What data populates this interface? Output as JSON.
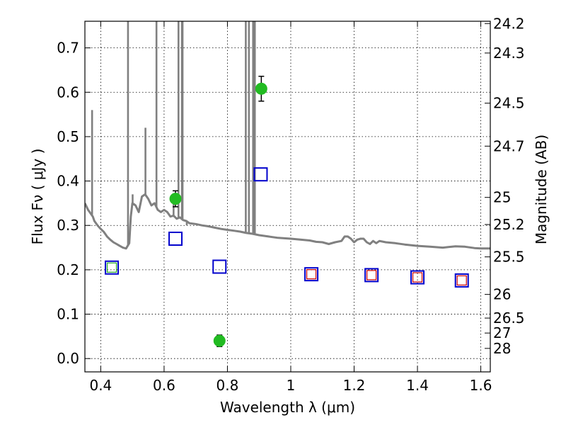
{
  "chart_data": {
    "type": "scatter",
    "title": "",
    "xlabel": "Wavelength  λ (μm)",
    "ylabel": "Flux  Fν  ( μJy )",
    "ylabel_right": "Magnitude (AB)",
    "xlim": [
      0.35,
      1.63
    ],
    "ylim": [
      -0.03,
      0.76
    ],
    "x_ticks": [
      0.4,
      0.6,
      0.8,
      1.0,
      1.2,
      1.4,
      1.6
    ],
    "x_tick_labels": [
      "0.4",
      "0.6",
      "0.8",
      "1",
      "1.2",
      "1.4",
      "1.6"
    ],
    "y_ticks": [
      0.0,
      0.1,
      0.2,
      0.3,
      0.4,
      0.5,
      0.6,
      0.7
    ],
    "y_tick_labels": [
      "0.0",
      "0.1",
      "0.2",
      "0.3",
      "0.4",
      "0.5",
      "0.6",
      "0.7"
    ],
    "right_ticks": [
      {
        "flux": 0.7548,
        "label": "24.2"
      },
      {
        "flux": 0.6884,
        "label": "24.3"
      },
      {
        "flux": 0.5754,
        "label": "24.5"
      },
      {
        "flux": 0.4786,
        "label": "24.7"
      },
      {
        "flux": 0.3631,
        "label": "25"
      },
      {
        "flux": 0.302,
        "label": "25.2"
      },
      {
        "flux": 0.2291,
        "label": "25.5"
      },
      {
        "flux": 0.1445,
        "label": "26"
      },
      {
        "flux": 0.0912,
        "label": "26.5"
      },
      {
        "flux": 0.0575,
        "label": "27"
      },
      {
        "flux": 0.0229,
        "label": "28"
      }
    ],
    "grid": true,
    "series": [
      {
        "kind": "line",
        "color": "#808080",
        "points": [
          [
            0.35,
            0.35
          ],
          [
            0.36,
            0.335
          ],
          [
            0.37,
            0.325
          ],
          [
            0.375,
            0.32
          ],
          [
            0.38,
            0.31
          ],
          [
            0.39,
            0.3
          ],
          [
            0.4,
            0.292
          ],
          [
            0.41,
            0.285
          ],
          [
            0.42,
            0.275
          ],
          [
            0.43,
            0.268
          ],
          [
            0.44,
            0.262
          ],
          [
            0.45,
            0.258
          ],
          [
            0.46,
            0.254
          ],
          [
            0.47,
            0.25
          ],
          [
            0.48,
            0.248
          ],
          [
            0.49,
            0.26
          ],
          [
            0.495,
            0.32
          ],
          [
            0.5,
            0.35
          ],
          [
            0.51,
            0.345
          ],
          [
            0.52,
            0.33
          ],
          [
            0.53,
            0.365
          ],
          [
            0.54,
            0.37
          ],
          [
            0.55,
            0.36
          ],
          [
            0.56,
            0.345
          ],
          [
            0.57,
            0.35
          ],
          [
            0.58,
            0.335
          ],
          [
            0.59,
            0.33
          ],
          [
            0.6,
            0.335
          ],
          [
            0.61,
            0.33
          ],
          [
            0.62,
            0.32
          ],
          [
            0.63,
            0.322
          ],
          [
            0.64,
            0.315
          ],
          [
            0.65,
            0.318
          ],
          [
            0.66,
            0.312
          ],
          [
            0.67,
            0.31
          ],
          [
            0.68,
            0.305
          ],
          [
            0.7,
            0.303
          ],
          [
            0.72,
            0.3
          ],
          [
            0.74,
            0.298
          ],
          [
            0.76,
            0.295
          ],
          [
            0.78,
            0.292
          ],
          [
            0.8,
            0.29
          ],
          [
            0.82,
            0.288
          ],
          [
            0.84,
            0.286
          ],
          [
            0.86,
            0.283
          ],
          [
            0.88,
            0.281
          ],
          [
            0.9,
            0.278
          ],
          [
            0.93,
            0.275
          ],
          [
            0.96,
            0.272
          ],
          [
            1.0,
            0.27
          ],
          [
            1.03,
            0.268
          ],
          [
            1.06,
            0.266
          ],
          [
            1.08,
            0.263
          ],
          [
            1.1,
            0.262
          ],
          [
            1.12,
            0.258
          ],
          [
            1.14,
            0.262
          ],
          [
            1.16,
            0.265
          ],
          [
            1.17,
            0.275
          ],
          [
            1.18,
            0.275
          ],
          [
            1.19,
            0.27
          ],
          [
            1.2,
            0.262
          ],
          [
            1.21,
            0.268
          ],
          [
            1.22,
            0.27
          ],
          [
            1.23,
            0.27
          ],
          [
            1.24,
            0.262
          ],
          [
            1.25,
            0.258
          ],
          [
            1.26,
            0.265
          ],
          [
            1.27,
            0.26
          ],
          [
            1.28,
            0.265
          ],
          [
            1.3,
            0.262
          ],
          [
            1.33,
            0.26
          ],
          [
            1.36,
            0.257
          ],
          [
            1.4,
            0.254
          ],
          [
            1.44,
            0.252
          ],
          [
            1.48,
            0.25
          ],
          [
            1.52,
            0.253
          ],
          [
            1.55,
            0.252
          ],
          [
            1.58,
            0.249
          ],
          [
            1.6,
            0.248
          ],
          [
            1.63,
            0.248
          ]
        ],
        "spikes": [
          {
            "x": 0.3727,
            "top": 0.56
          },
          {
            "x": 0.4861,
            "top": 0.76
          },
          {
            "x": 0.5007,
            "top": 0.37
          },
          {
            "x": 0.5047,
            "top": 0.35
          },
          {
            "x": 0.5412,
            "top": 0.52
          },
          {
            "x": 0.576,
            "top": 0.76
          },
          {
            "x": 0.63,
            "top": 0.35
          },
          {
            "x": 0.6455,
            "top": 0.76
          },
          {
            "x": 0.6563,
            "top": 0.76
          },
          {
            "x": 0.6584,
            "top": 0.76
          },
          {
            "x": 0.6716,
            "top": 0.3
          },
          {
            "x": 0.858,
            "top": 0.76
          },
          {
            "x": 0.868,
            "top": 0.76
          },
          {
            "x": 0.881,
            "top": 0.76
          },
          {
            "x": 0.8866,
            "top": 0.76
          }
        ]
      },
      {
        "kind": "open-square",
        "color": "#0000cc",
        "points": [
          [
            0.435,
            0.205
          ],
          [
            0.636,
            0.27
          ],
          [
            0.775,
            0.207
          ],
          [
            0.905,
            0.415
          ],
          [
            1.065,
            0.19
          ],
          [
            1.255,
            0.188
          ],
          [
            1.4,
            0.183
          ],
          [
            1.54,
            0.176
          ]
        ]
      },
      {
        "kind": "open-square-small",
        "color": "#cc0000",
        "points": [
          [
            1.065,
            0.19
          ],
          [
            1.255,
            0.188
          ],
          [
            1.4,
            0.183
          ],
          [
            1.54,
            0.176
          ]
        ]
      },
      {
        "kind": "open-square-small",
        "color": "#22aa22",
        "points": [
          [
            0.435,
            0.205
          ]
        ]
      },
      {
        "kind": "filled-circle",
        "color": "#22bb22",
        "points": [
          {
            "x": 0.636,
            "y": 0.36,
            "err": 0.018
          },
          {
            "x": 0.775,
            "y": 0.04,
            "err": 0.013
          },
          {
            "x": 0.907,
            "y": 0.608,
            "err": 0.028
          }
        ]
      }
    ]
  }
}
